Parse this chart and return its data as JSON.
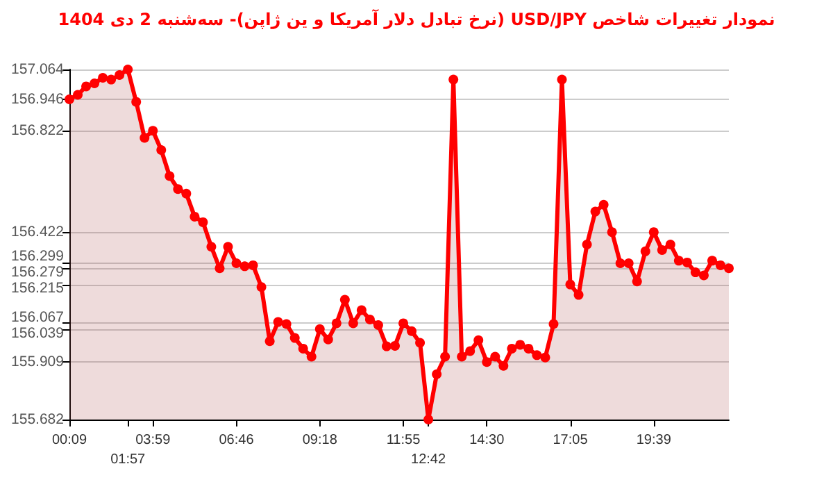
{
  "chart_data": {
    "type": "area",
    "title": "نمودار تغییرات شاخص USD/JPY (نرخ تبادل دلار آمریکا و ین ژاپن)- سه‌شنبه  2 دی 1404",
    "categories": [
      "00:09",
      null,
      null,
      null,
      null,
      null,
      null,
      "01:57",
      null,
      null,
      "03:59",
      null,
      null,
      null,
      null,
      null,
      null,
      null,
      null,
      null,
      "06:46",
      null,
      null,
      null,
      null,
      null,
      null,
      null,
      null,
      null,
      "09:18",
      null,
      null,
      null,
      null,
      null,
      null,
      null,
      null,
      null,
      "11:55",
      null,
      null,
      "12:42",
      null,
      null,
      null,
      null,
      null,
      null,
      "14:30",
      null,
      null,
      null,
      null,
      null,
      null,
      null,
      null,
      null,
      "17:05",
      null,
      null,
      null,
      null,
      null,
      null,
      null,
      null,
      null,
      "19:39",
      null,
      null,
      null,
      null,
      null,
      null,
      null,
      null,
      null
    ],
    "series": [
      {
        "color": "#ff0000",
        "values": [
          156.946,
          156.964,
          156.997,
          157.009,
          157.031,
          157.024,
          157.042,
          157.064,
          156.936,
          156.794,
          156.822,
          156.746,
          156.643,
          156.592,
          156.574,
          156.483,
          156.461,
          156.364,
          156.279,
          156.364,
          156.299,
          156.287,
          156.291,
          156.205,
          155.991,
          156.067,
          156.059,
          156.004,
          155.962,
          155.93,
          156.039,
          155.998,
          156.062,
          156.155,
          156.062,
          156.114,
          156.077,
          156.055,
          155.971,
          155.973,
          156.062,
          156.031,
          155.985,
          155.682,
          155.861,
          155.93,
          157.024,
          155.93,
          155.952,
          155.995,
          155.909,
          155.93,
          155.894,
          155.962,
          155.977,
          155.962,
          155.936,
          155.927,
          156.059,
          157.024,
          156.215,
          156.174,
          156.373,
          156.503,
          156.53,
          156.422,
          156.299,
          156.299,
          156.227,
          156.346,
          156.422,
          156.351,
          156.373,
          156.309,
          156.302,
          156.263,
          156.251,
          156.309,
          156.291,
          156.279
        ]
      }
    ],
    "ylim": [
      155.682,
      157.064
    ],
    "yticks": [
      155.682,
      155.909,
      156.039,
      156.067,
      156.215,
      156.279,
      156.299,
      156.422,
      156.822,
      156.946,
      157.064
    ],
    "grid": "y",
    "marker": "circle",
    "line_style": "solid"
  }
}
